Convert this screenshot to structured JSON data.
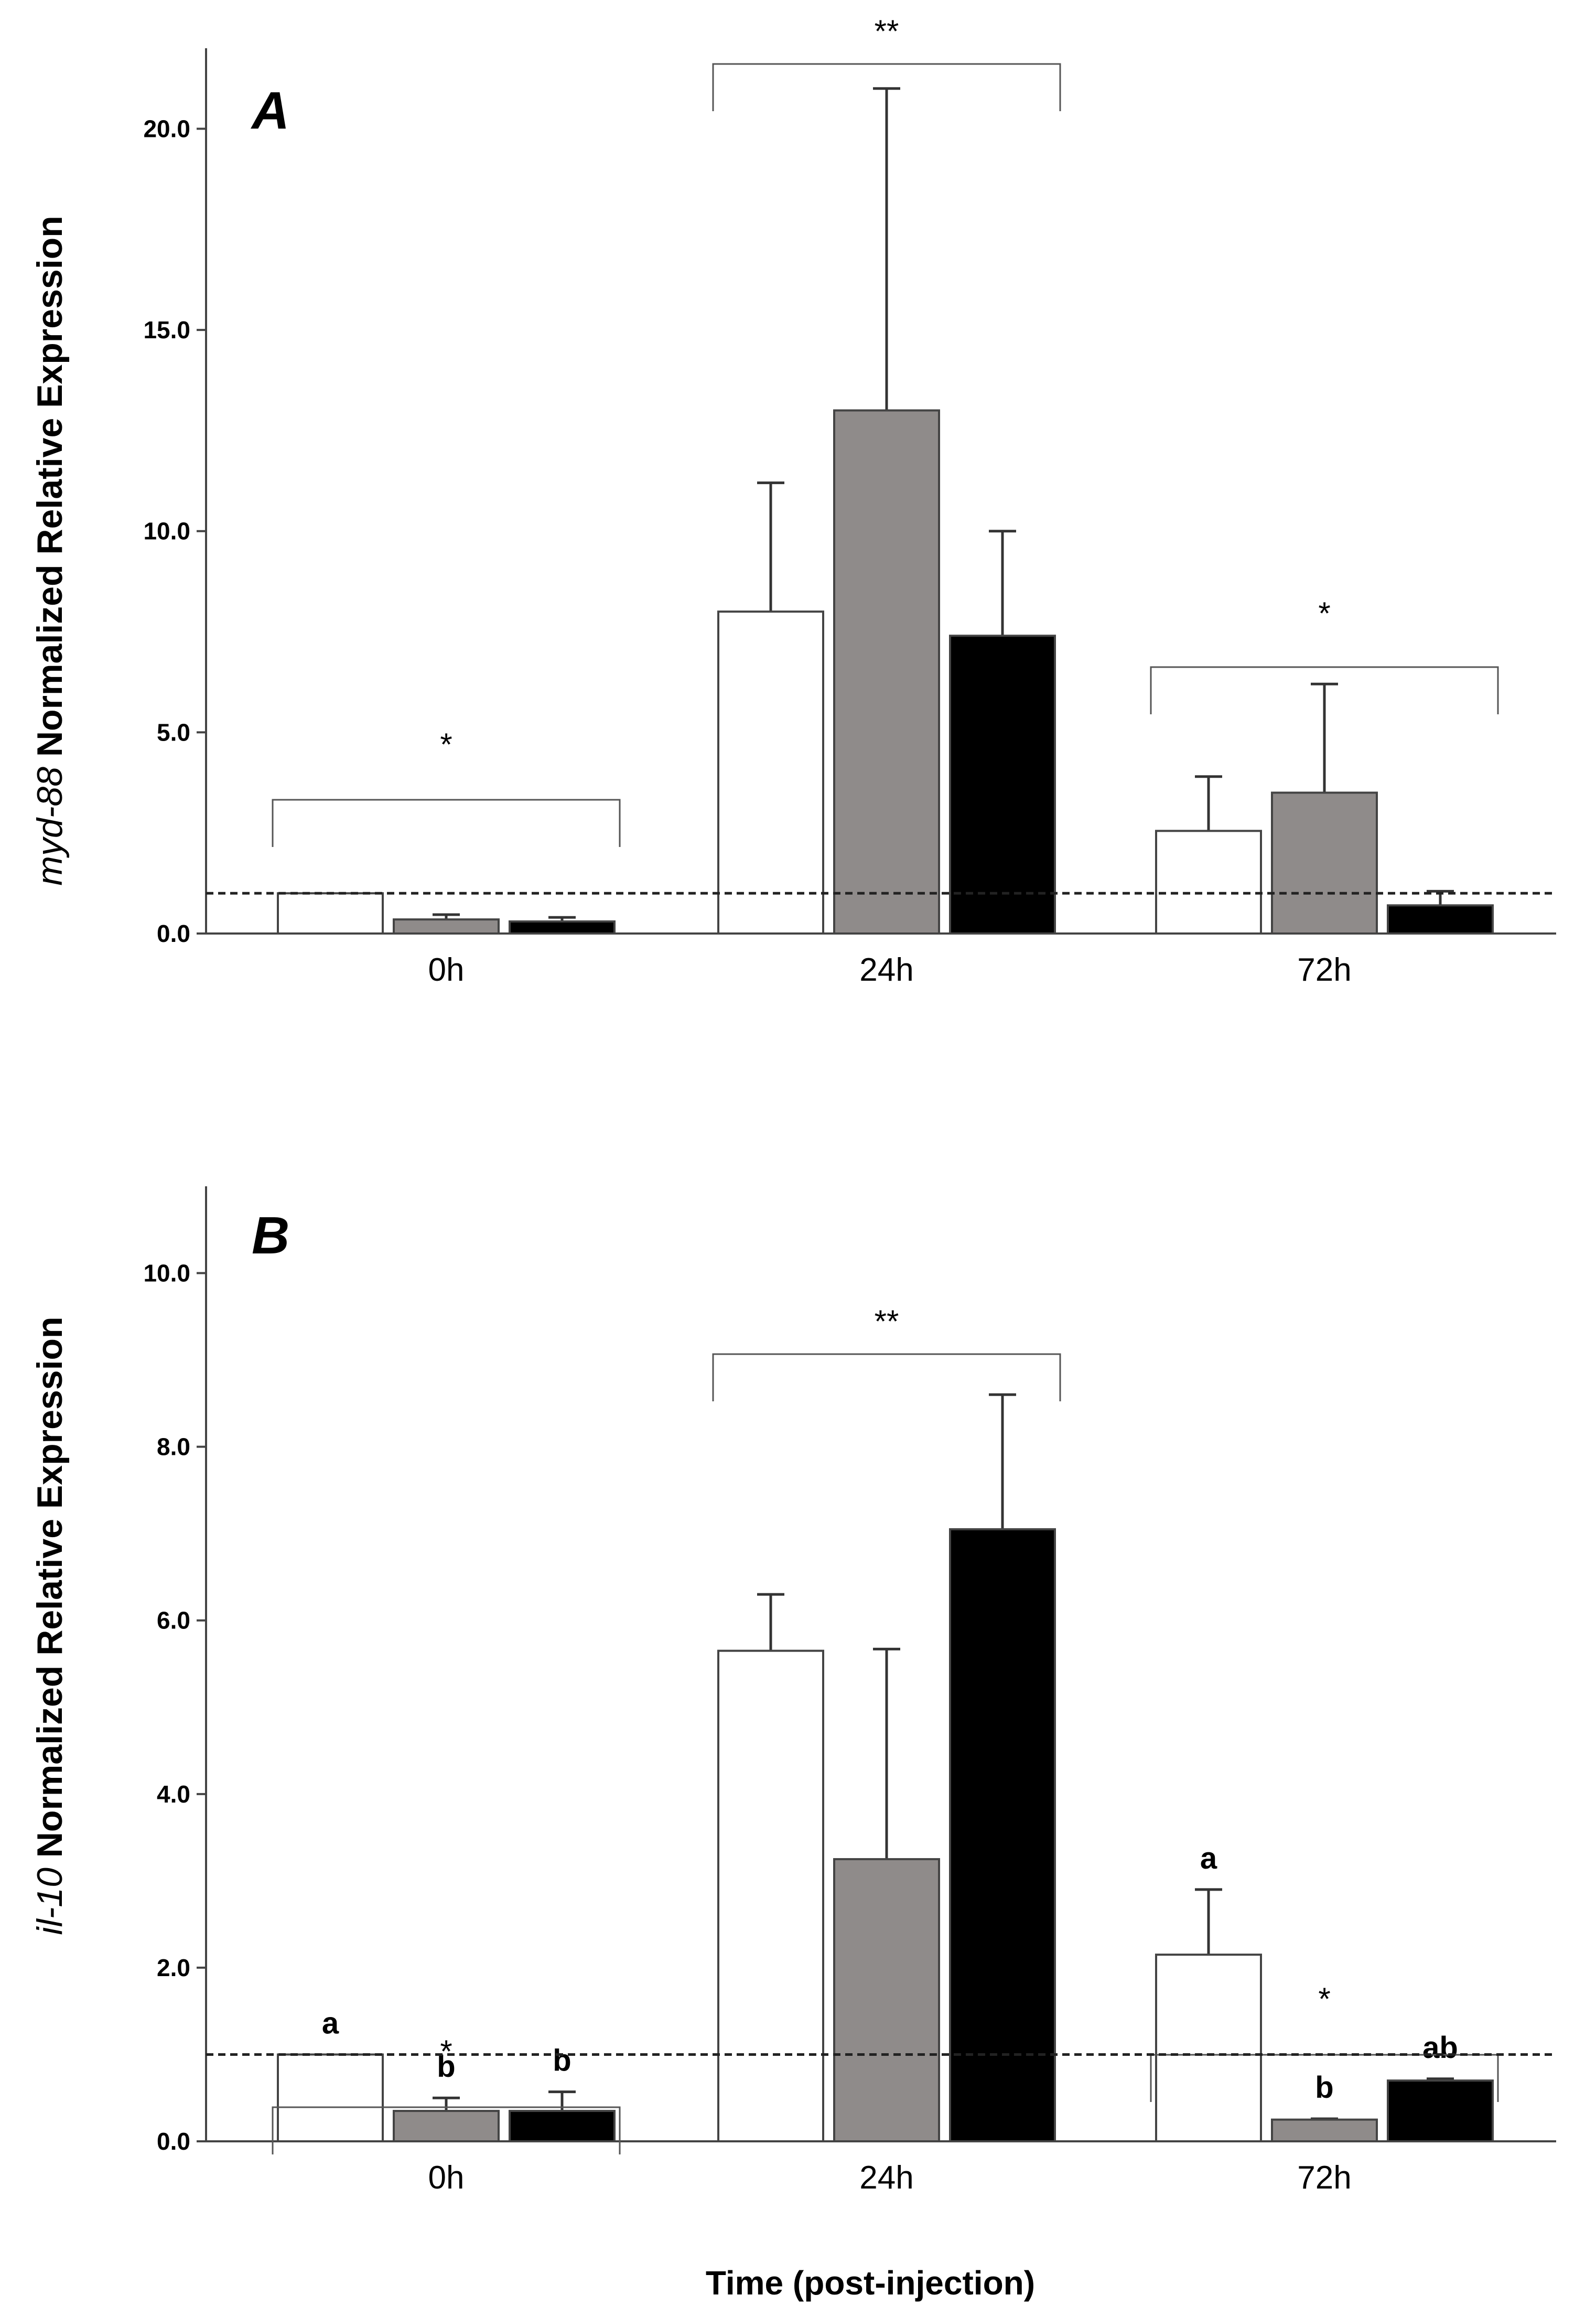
{
  "chart_data": [
    {
      "type": "bar",
      "panel": "A",
      "gene": "myd-88",
      "ylabel_rest": " Normalized Relative Expression",
      "categories": [
        "0h",
        "24h",
        "72h"
      ],
      "yticks": [
        "0.0",
        "5.0",
        "10.0",
        "15.0",
        "20.0"
      ],
      "ylim": [
        0,
        22
      ],
      "baseline": 1.0,
      "series": [
        {
          "name": "group-1",
          "color": "#ffffff",
          "values": [
            1.0,
            8.0,
            2.55
          ],
          "errors": [
            0.0,
            3.2,
            1.35
          ]
        },
        {
          "name": "group-2",
          "color": "#8f8b8a",
          "values": [
            0.35,
            13.0,
            3.5
          ],
          "errors": [
            0.12,
            8.0,
            2.7
          ]
        },
        {
          "name": "group-3",
          "color": "#000000",
          "values": [
            0.3,
            7.4,
            0.7
          ],
          "errors": [
            0.1,
            2.6,
            0.35
          ]
        }
      ],
      "significance": [
        "*",
        "**",
        "*"
      ],
      "letters": [
        [
          "",
          "",
          ""
        ],
        [
          "",
          "",
          ""
        ],
        [
          "",
          "",
          ""
        ]
      ]
    },
    {
      "type": "bar",
      "panel": "B",
      "gene": "il-10",
      "ylabel_rest": " Normalized Relative Expression",
      "categories": [
        "0h",
        "24h",
        "72h"
      ],
      "yticks": [
        "0.0",
        "2.0",
        "4.0",
        "6.0",
        "8.0",
        "10.0"
      ],
      "ylim": [
        0,
        11
      ],
      "baseline": 1.0,
      "series": [
        {
          "name": "group-1",
          "color": "#ffffff",
          "values": [
            1.0,
            5.65,
            2.15
          ],
          "errors": [
            0.0,
            0.65,
            0.75
          ]
        },
        {
          "name": "group-2",
          "color": "#8f8b8a",
          "values": [
            0.35,
            3.25,
            0.25
          ],
          "errors": [
            0.15,
            2.42,
            0.01
          ]
        },
        {
          "name": "group-3",
          "color": "#000000",
          "values": [
            0.35,
            7.05,
            0.7
          ],
          "errors": [
            0.22,
            1.55,
            0.02
          ]
        }
      ],
      "significance": [
        "*",
        "**",
        "*"
      ],
      "letters": [
        [
          "a",
          "b",
          "b"
        ],
        [
          "",
          "",
          ""
        ],
        [
          "a",
          "b",
          "ab"
        ]
      ]
    }
  ],
  "xlabel": "Time (post-injection)"
}
